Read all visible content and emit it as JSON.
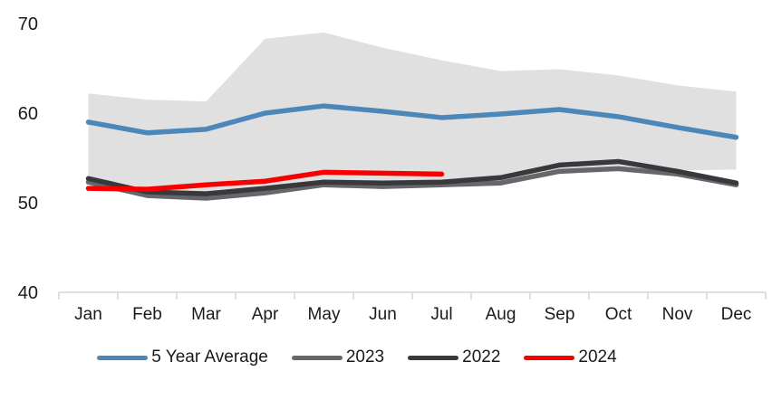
{
  "chart_data": {
    "type": "line",
    "title": "",
    "xlabel": "",
    "ylabel": "",
    "categories": [
      "Jan",
      "Feb",
      "Mar",
      "Apr",
      "May",
      "Jun",
      "Jul",
      "Aug",
      "Sep",
      "Oct",
      "Nov",
      "Dec"
    ],
    "ylim": [
      40,
      70
    ],
    "y_ticks": [
      40,
      50,
      60,
      70
    ],
    "grid": false,
    "legend_position": "bottom",
    "axis_color": "#d6d6d6",
    "tick_label_color": "#1a1a1a",
    "band": {
      "name": "5-year-range-band",
      "color": "#e0e0e0",
      "upper": [
        62.2,
        61.5,
        61.3,
        68.3,
        69.0,
        67.3,
        65.9,
        64.7,
        64.9,
        64.2,
        63.1,
        62.4
      ],
      "lower": [
        52.4,
        51.0,
        50.7,
        51.2,
        51.9,
        51.8,
        52.0,
        52.3,
        53.4,
        53.8,
        53.6,
        53.7
      ]
    },
    "series": [
      {
        "name": "5 Year Average",
        "color": "#4c87b9",
        "values": [
          59.0,
          57.8,
          58.2,
          60.0,
          60.8,
          60.2,
          59.5,
          59.9,
          60.4,
          59.6,
          58.4,
          57.3
        ]
      },
      {
        "name": "2023",
        "color": "#66666b",
        "values": [
          52.3,
          50.8,
          50.5,
          51.1,
          52.0,
          51.8,
          52.0,
          52.2,
          53.5,
          53.8,
          53.2,
          52.0
        ]
      },
      {
        "name": "2022",
        "color": "#39393d",
        "values": [
          52.7,
          51.2,
          51.0,
          51.6,
          52.3,
          52.2,
          52.3,
          52.8,
          54.2,
          54.6,
          53.5,
          52.2
        ]
      },
      {
        "name": "2024",
        "color": "#f70000",
        "values": [
          51.6,
          51.5,
          52.0,
          52.4,
          53.4,
          53.3,
          53.2,
          null,
          null,
          null,
          null,
          null
        ]
      }
    ]
  }
}
